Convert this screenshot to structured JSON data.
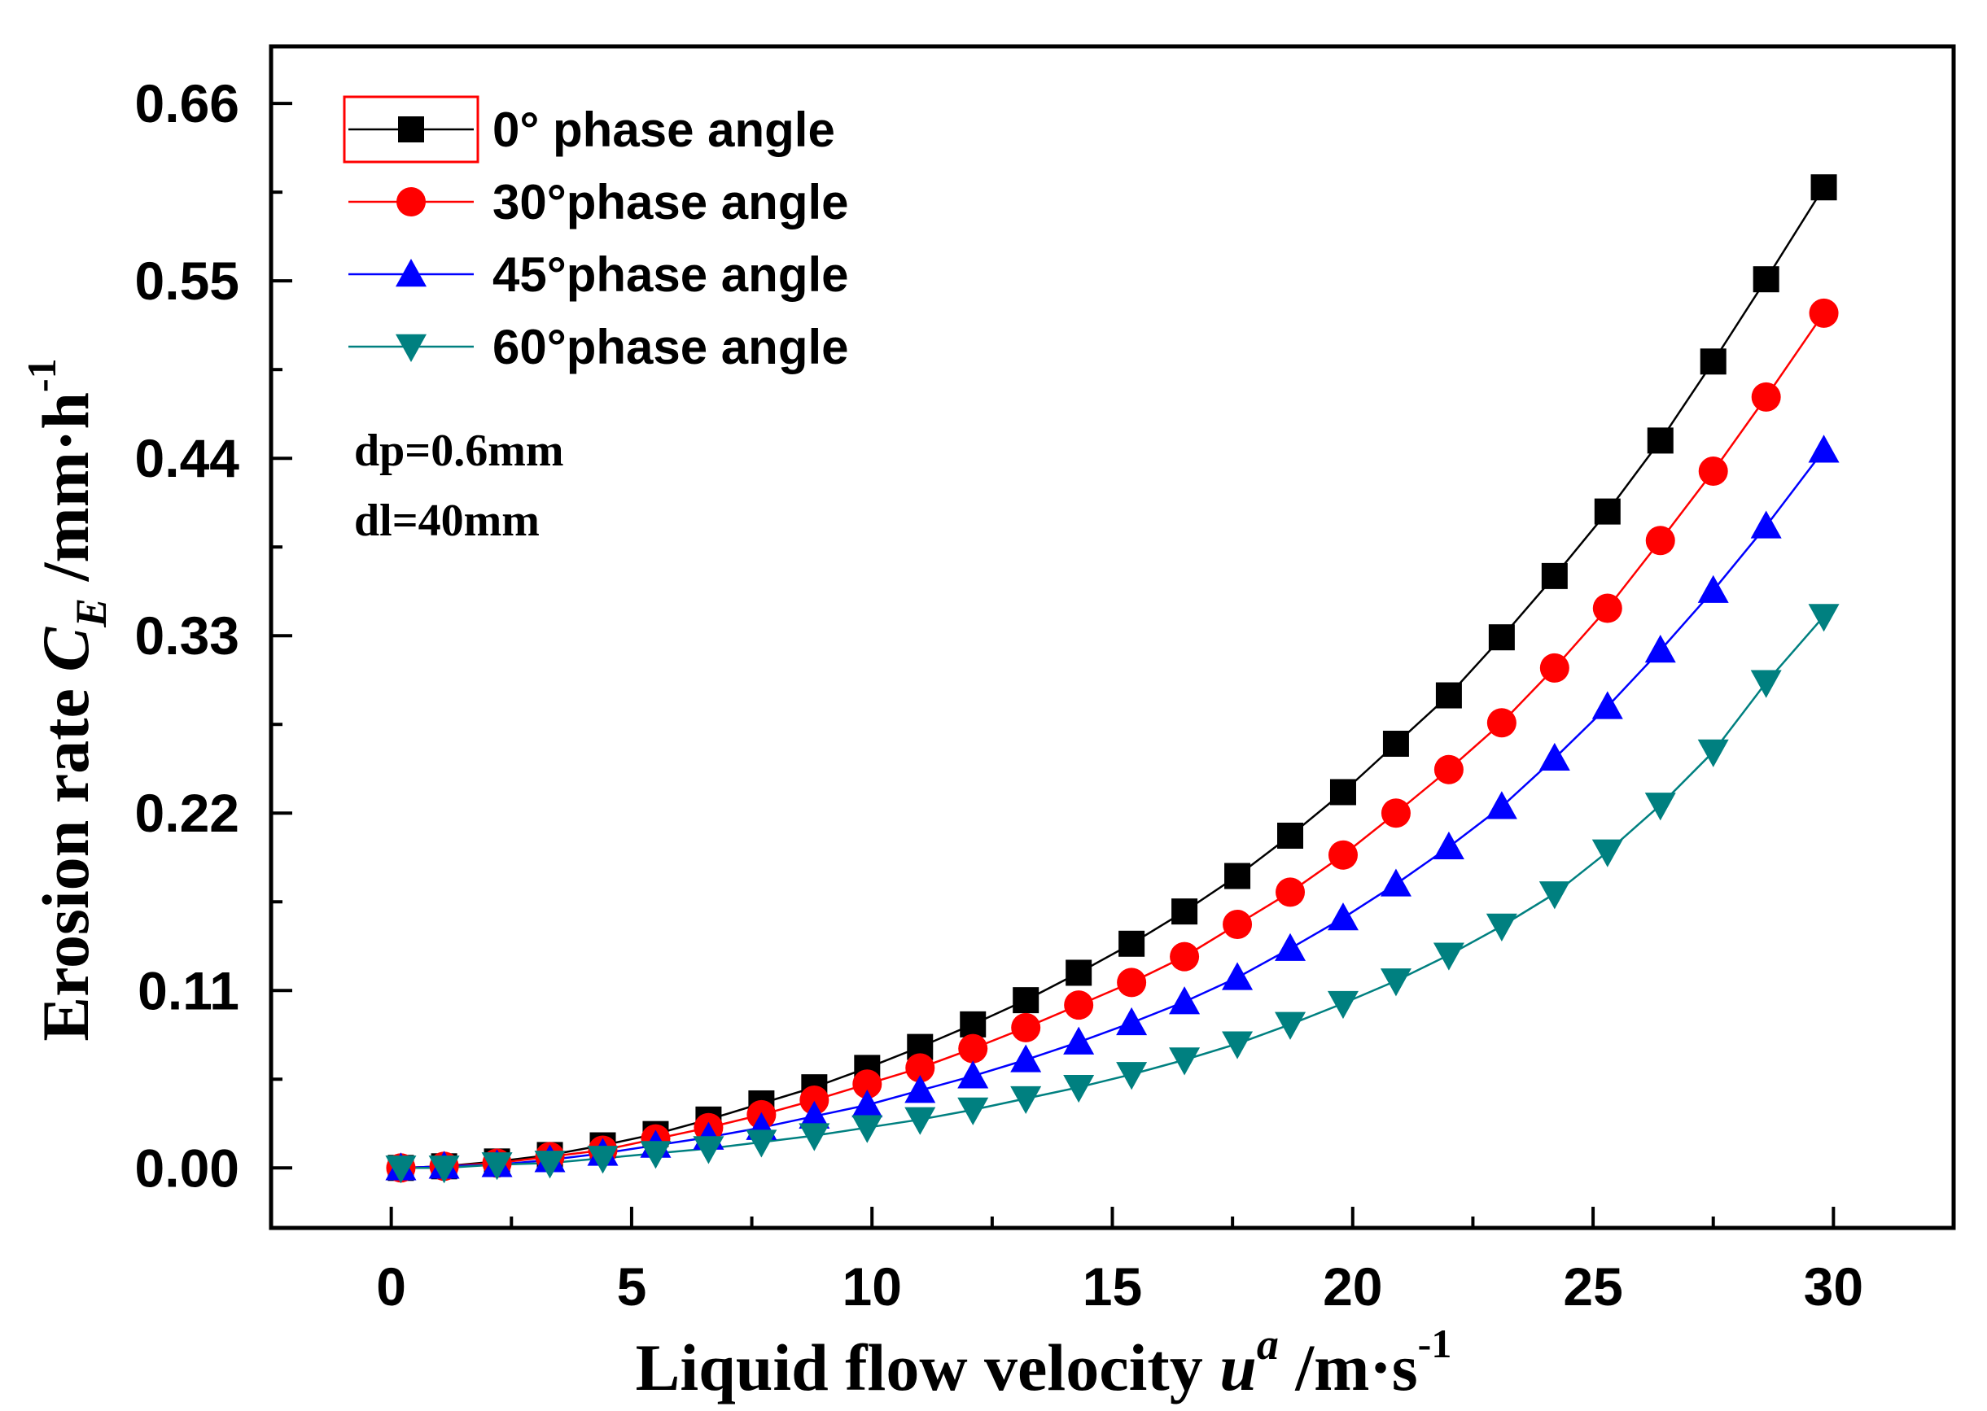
{
  "chart_data": {
    "type": "line",
    "title": "",
    "xlabel": {
      "main": "Liquid flow velocity ",
      "var": "u",
      "sup": "a",
      "unit": " /m·s",
      "unit_sup": "-1"
    },
    "ylabel": {
      "main": "Erosion rate ",
      "var": "C",
      "sub": "E",
      "unit": " /mm·h",
      "unit_sup": "-1"
    },
    "xlim": [
      -2.5,
      32.5
    ],
    "ylim": [
      -0.0372,
      0.6954
    ],
    "xticks": [
      0,
      5,
      10,
      15,
      20,
      25,
      30
    ],
    "xtick_labels": [
      "0",
      "5",
      "10",
      "15",
      "20",
      "25",
      "30"
    ],
    "yticks": [
      0.0,
      0.11,
      0.22,
      0.33,
      0.44,
      0.55,
      0.66
    ],
    "ytick_labels": [
      "0.00",
      "0.11",
      "0.22",
      "0.33",
      "0.44",
      "0.55",
      "0.66"
    ],
    "grid": false,
    "legend_position": "top-left",
    "x": [
      0.2,
      1.1,
      2.2,
      3.3,
      4.4,
      5.5,
      6.6,
      7.7,
      8.8,
      9.9,
      11.0,
      12.1,
      13.2,
      14.3,
      15.4,
      16.5,
      17.6,
      18.7,
      19.8,
      20.9,
      22.0,
      23.1,
      24.2,
      25.3,
      26.4,
      27.5,
      28.6,
      29.8
    ],
    "series": [
      {
        "name": "0° phase angle",
        "marker": "square",
        "color": "#000000",
        "values": [
          0.0,
          0.001,
          0.004,
          0.008,
          0.014,
          0.021,
          0.03,
          0.04,
          0.05,
          0.062,
          0.075,
          0.089,
          0.104,
          0.121,
          0.139,
          0.159,
          0.181,
          0.206,
          0.233,
          0.263,
          0.293,
          0.329,
          0.367,
          0.407,
          0.451,
          0.5,
          0.551,
          0.608
        ]
      },
      {
        "name": "30°phase angle",
        "marker": "circle",
        "color": "#ff0000",
        "values": [
          0.0,
          0.001,
          0.003,
          0.007,
          0.011,
          0.018,
          0.025,
          0.033,
          0.042,
          0.052,
          0.062,
          0.074,
          0.087,
          0.101,
          0.115,
          0.131,
          0.151,
          0.171,
          0.194,
          0.22,
          0.247,
          0.276,
          0.31,
          0.347,
          0.389,
          0.432,
          0.478,
          0.53
        ]
      },
      {
        "name": "45°phase angle",
        "marker": "triangle-up",
        "color": "#0000ff",
        "values": [
          0.0,
          0.001,
          0.002,
          0.005,
          0.009,
          0.014,
          0.019,
          0.025,
          0.032,
          0.039,
          0.048,
          0.057,
          0.067,
          0.078,
          0.09,
          0.103,
          0.118,
          0.136,
          0.155,
          0.176,
          0.199,
          0.224,
          0.254,
          0.286,
          0.321,
          0.358,
          0.398,
          0.445
        ]
      },
      {
        "name": "60°phase angle",
        "marker": "triangle-down",
        "color": "#008080",
        "values": [
          0.0,
          0.0,
          0.002,
          0.003,
          0.006,
          0.009,
          0.012,
          0.016,
          0.02,
          0.025,
          0.03,
          0.036,
          0.043,
          0.05,
          0.058,
          0.067,
          0.077,
          0.089,
          0.102,
          0.116,
          0.132,
          0.15,
          0.17,
          0.196,
          0.225,
          0.258,
          0.301,
          0.342
        ]
      }
    ],
    "annotations": [
      "dp=0.6mm",
      "dl=40mm"
    ]
  }
}
